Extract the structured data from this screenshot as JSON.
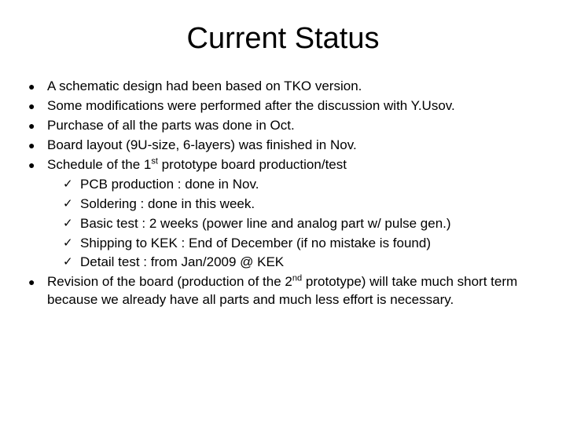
{
  "title": "Current Status",
  "bullets": {
    "b0": "A schematic design had been based on TKO version.",
    "b1": "Some modifications were performed after the discussion with Y.Usov.",
    "b2": "Purchase of all the parts was done in Oct.",
    "b3": "Board layout (9U-size, 6-layers) was finished in Nov.",
    "b4_pre": "Schedule of the 1",
    "b4_sup": "st",
    "b4_post": " prototype board production/test",
    "b5_pre": "Revision of the board (production of the 2",
    "b5_sup": "nd",
    "b5_post": " prototype) will take much short term because we already have all parts and much less effort is necessary."
  },
  "sub": {
    "s0": "PCB production : done in Nov.",
    "s1": "Soldering : done in this week.",
    "s2": "Basic test : 2 weeks (power line and analog part w/ pulse gen.)",
    "s3": "Shipping to KEK : End of December (if no mistake is found)",
    "s4": "Detail test : from Jan/2009 @ KEK"
  }
}
